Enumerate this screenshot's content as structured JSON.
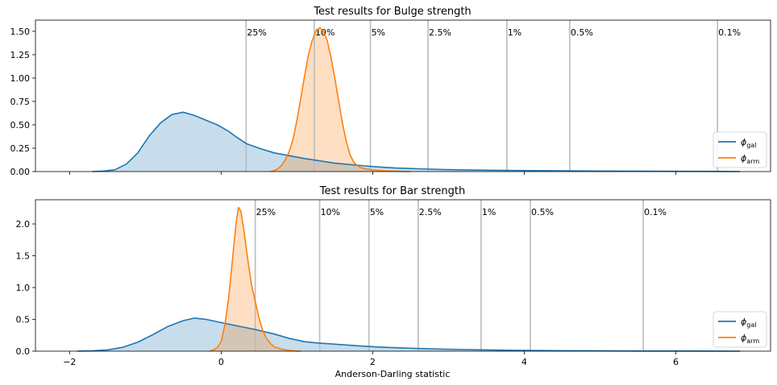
{
  "chart_data": [
    {
      "type": "area",
      "title": "Test results for Bulge strength",
      "xlabel": "",
      "ylabel": "",
      "xlim": [
        -2.45,
        7.25
      ],
      "ylim": [
        0,
        1.62
      ],
      "yticks": [
        0.0,
        0.25,
        0.5,
        0.75,
        1.0,
        1.25,
        1.5
      ],
      "ytick_labels": [
        "0.00",
        "0.25",
        "0.50",
        "0.75",
        "1.00",
        "1.25",
        "1.50"
      ],
      "xticks": [
        -2,
        0,
        2,
        4,
        6
      ],
      "show_xtick_labels": false,
      "significance_lines": [
        {
          "label": "25%",
          "x": 0.33
        },
        {
          "label": "10%",
          "x": 1.23
        },
        {
          "label": "5%",
          "x": 1.97
        },
        {
          "label": "2.5%",
          "x": 2.73
        },
        {
          "label": "1%",
          "x": 3.77
        },
        {
          "label": "0.5%",
          "x": 4.6
        },
        {
          "label": "0.1%",
          "x": 6.55
        }
      ],
      "series": [
        {
          "name": "gal",
          "color": "#1f77b4",
          "points": [
            [
              -1.7,
              0.0
            ],
            [
              -1.55,
              0.005
            ],
            [
              -1.4,
              0.02
            ],
            [
              -1.25,
              0.08
            ],
            [
              -1.1,
              0.2
            ],
            [
              -0.95,
              0.38
            ],
            [
              -0.8,
              0.52
            ],
            [
              -0.65,
              0.61
            ],
            [
              -0.5,
              0.635
            ],
            [
              -0.35,
              0.6
            ],
            [
              -0.2,
              0.55
            ],
            [
              -0.05,
              0.5
            ],
            [
              0.1,
              0.43
            ],
            [
              0.2,
              0.37
            ],
            [
              0.33,
              0.3
            ],
            [
              0.5,
              0.25
            ],
            [
              0.7,
              0.2
            ],
            [
              0.9,
              0.17
            ],
            [
              1.1,
              0.14
            ],
            [
              1.3,
              0.115
            ],
            [
              1.5,
              0.09
            ],
            [
              1.7,
              0.075
            ],
            [
              1.9,
              0.06
            ],
            [
              2.1,
              0.048
            ],
            [
              2.3,
              0.038
            ],
            [
              2.6,
              0.03
            ],
            [
              2.9,
              0.022
            ],
            [
              3.2,
              0.018
            ],
            [
              3.5,
              0.015
            ],
            [
              3.8,
              0.012
            ],
            [
              4.1,
              0.01
            ],
            [
              4.5,
              0.008
            ],
            [
              5.0,
              0.005
            ],
            [
              5.5,
              0.004
            ],
            [
              6.0,
              0.003
            ],
            [
              6.5,
              0.002
            ],
            [
              6.85,
              0.0
            ]
          ]
        },
        {
          "name": "arm",
          "color": "#ff7f0e",
          "points": [
            [
              0.65,
              0.0
            ],
            [
              0.7,
              0.01
            ],
            [
              0.75,
              0.03
            ],
            [
              0.8,
              0.07
            ],
            [
              0.85,
              0.13
            ],
            [
              0.9,
              0.22
            ],
            [
              0.95,
              0.35
            ],
            [
              1.0,
              0.55
            ],
            [
              1.05,
              0.78
            ],
            [
              1.1,
              1.02
            ],
            [
              1.15,
              1.24
            ],
            [
              1.2,
              1.4
            ],
            [
              1.25,
              1.5
            ],
            [
              1.3,
              1.54
            ],
            [
              1.35,
              1.5
            ],
            [
              1.4,
              1.4
            ],
            [
              1.45,
              1.22
            ],
            [
              1.5,
              1.0
            ],
            [
              1.55,
              0.76
            ],
            [
              1.6,
              0.52
            ],
            [
              1.65,
              0.33
            ],
            [
              1.7,
              0.18
            ],
            [
              1.75,
              0.1
            ],
            [
              1.8,
              0.06
            ],
            [
              1.85,
              0.04
            ],
            [
              1.9,
              0.03
            ],
            [
              2.0,
              0.018
            ],
            [
              2.1,
              0.01
            ],
            [
              2.2,
              0.006
            ],
            [
              2.35,
              0.003
            ],
            [
              2.5,
              0.0
            ]
          ]
        }
      ],
      "legend": {
        "position": "lower-right",
        "entries": [
          "ϕgal",
          "ϕarm"
        ]
      }
    },
    {
      "type": "area",
      "title": "Test results for Bar strength",
      "xlabel": "Anderson-Darling statistic",
      "ylabel": "",
      "xlim": [
        -2.45,
        7.25
      ],
      "ylim": [
        0,
        2.38
      ],
      "yticks": [
        0.0,
        0.5,
        1.0,
        1.5,
        2.0
      ],
      "ytick_labels": [
        "0.0",
        "0.5",
        "1.0",
        "1.5",
        "2.0"
      ],
      "xticks": [
        -2,
        0,
        2,
        4,
        6
      ],
      "show_xtick_labels": true,
      "xtick_labels": [
        "−2",
        "0",
        "2",
        "4",
        "6"
      ],
      "significance_lines": [
        {
          "label": "25%",
          "x": 0.45
        },
        {
          "label": "10%",
          "x": 1.3
        },
        {
          "label": "5%",
          "x": 1.95
        },
        {
          "label": "2.5%",
          "x": 2.6
        },
        {
          "label": "1%",
          "x": 3.43
        },
        {
          "label": "0.5%",
          "x": 4.08
        },
        {
          "label": "0.1%",
          "x": 5.57
        }
      ],
      "series": [
        {
          "name": "gal",
          "color": "#1f77b4",
          "points": [
            [
              -1.9,
              0.0
            ],
            [
              -1.7,
              0.005
            ],
            [
              -1.5,
              0.02
            ],
            [
              -1.3,
              0.06
            ],
            [
              -1.1,
              0.14
            ],
            [
              -0.9,
              0.26
            ],
            [
              -0.7,
              0.39
            ],
            [
              -0.5,
              0.48
            ],
            [
              -0.35,
              0.52
            ],
            [
              -0.2,
              0.5
            ],
            [
              0.0,
              0.45
            ],
            [
              0.2,
              0.4
            ],
            [
              0.45,
              0.34
            ],
            [
              0.7,
              0.27
            ],
            [
              0.9,
              0.2
            ],
            [
              1.1,
              0.15
            ],
            [
              1.3,
              0.125
            ],
            [
              1.5,
              0.11
            ],
            [
              1.8,
              0.085
            ],
            [
              2.1,
              0.065
            ],
            [
              2.4,
              0.05
            ],
            [
              2.8,
              0.035
            ],
            [
              3.2,
              0.025
            ],
            [
              3.6,
              0.018
            ],
            [
              4.0,
              0.012
            ],
            [
              4.5,
              0.008
            ],
            [
              5.0,
              0.005
            ],
            [
              5.5,
              0.003
            ],
            [
              6.0,
              0.002
            ],
            [
              6.5,
              0.001
            ],
            [
              6.85,
              0.0
            ]
          ]
        },
        {
          "name": "arm",
          "color": "#ff7f0e",
          "points": [
            [
              -0.15,
              0.0
            ],
            [
              -0.1,
              0.02
            ],
            [
              -0.05,
              0.06
            ],
            [
              0.0,
              0.15
            ],
            [
              0.05,
              0.42
            ],
            [
              0.1,
              0.85
            ],
            [
              0.15,
              1.45
            ],
            [
              0.2,
              2.05
            ],
            [
              0.23,
              2.26
            ],
            [
              0.26,
              2.2
            ],
            [
              0.3,
              1.9
            ],
            [
              0.35,
              1.45
            ],
            [
              0.4,
              1.05
            ],
            [
              0.45,
              0.78
            ],
            [
              0.5,
              0.52
            ],
            [
              0.55,
              0.32
            ],
            [
              0.6,
              0.2
            ],
            [
              0.65,
              0.12
            ],
            [
              0.7,
              0.07
            ],
            [
              0.8,
              0.03
            ],
            [
              0.9,
              0.01
            ],
            [
              1.0,
              0.003
            ],
            [
              1.05,
              0.0
            ]
          ]
        }
      ],
      "legend": {
        "position": "lower-right",
        "entries": [
          "ϕgal",
          "ϕarm"
        ]
      }
    }
  ]
}
